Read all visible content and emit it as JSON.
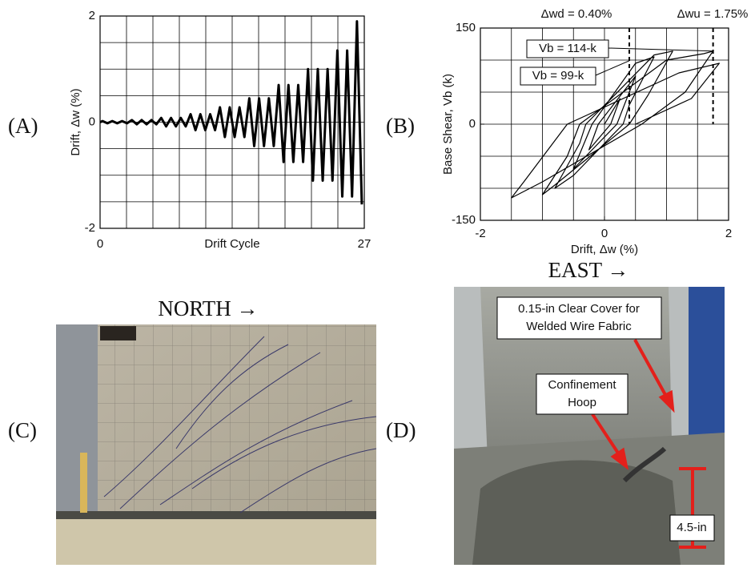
{
  "chart_data": [
    {
      "type": "line",
      "x_label": "Drift Cycle",
      "y_label": "Drift, Δw (%)",
      "xlim": [
        0,
        27
      ],
      "xticks": [
        0,
        27
      ],
      "ylim": [
        -2,
        2
      ],
      "yticks": [
        -2,
        0,
        2
      ],
      "grid": true,
      "color": "#000000",
      "x": [
        0,
        0.25,
        0.75,
        1.25,
        1.75,
        2.25,
        2.75,
        3.25,
        3.75,
        4.25,
        4.75,
        5.25,
        5.75,
        6.25,
        6.75,
        7.25,
        7.75,
        8.25,
        8.75,
        9.25,
        9.75,
        10.25,
        10.75,
        11.25,
        11.75,
        12.25,
        12.75,
        13.25,
        13.75,
        14.25,
        14.75,
        15.25,
        15.75,
        16.25,
        16.75,
        17.25,
        17.75,
        18.25,
        18.75,
        19.25,
        19.75,
        20.25,
        20.75,
        21.25,
        21.75,
        22.25,
        22.75,
        23.25,
        23.75,
        24.25,
        24.75,
        25.25,
        25.75,
        26.25,
        26.75
      ],
      "values": [
        0,
        0.02,
        -0.02,
        0.02,
        -0.02,
        0.02,
        -0.02,
        0.04,
        -0.04,
        0.04,
        -0.04,
        0.04,
        -0.04,
        0.08,
        -0.08,
        0.08,
        -0.08,
        0.08,
        -0.08,
        0.15,
        -0.15,
        0.15,
        -0.15,
        0.15,
        -0.15,
        0.28,
        -0.28,
        0.28,
        -0.28,
        0.28,
        -0.28,
        0.45,
        -0.45,
        0.45,
        -0.45,
        0.45,
        -0.45,
        0.7,
        -0.75,
        0.7,
        -0.75,
        0.7,
        -0.75,
        1.0,
        -1.1,
        1.0,
        -1.1,
        1.0,
        -1.1,
        1.35,
        -1.4,
        1.35,
        -1.4,
        1.9,
        -1.55
      ]
    },
    {
      "type": "line",
      "x_label": "Drift, Δw (%)",
      "y_label": "Base Shear, Vb (k)",
      "xlim": [
        -2,
        2
      ],
      "xticks": [
        -2,
        0,
        2
      ],
      "ylim": [
        -150,
        150
      ],
      "yticks": [
        -150,
        0,
        150
      ],
      "grid": true,
      "color": "#000000",
      "x": [
        0,
        0.25,
        0.1,
        -0.25,
        -0.1,
        0.5,
        0.2,
        -0.5,
        -0.2,
        0.5,
        0.8,
        0.4,
        0.3,
        -0.5,
        -0.8,
        -0.4,
        -0.3,
        0.8,
        1.1,
        0.7,
        0.4,
        -0.8,
        -1.0,
        -0.6,
        -0.4,
        1.0,
        1.6,
        1.75,
        1.3,
        0.6,
        -1.0,
        -1.5,
        -1.3,
        -0.6,
        1.2,
        1.85,
        1.4,
        0.5
      ],
      "values": [
        0,
        40,
        0,
        -40,
        0,
        75,
        0,
        -70,
        0,
        95,
        105,
        30,
        0,
        -80,
        -100,
        -30,
        0,
        108,
        114,
        45,
        0,
        -95,
        -110,
        -50,
        0,
        100,
        110,
        114,
        50,
        0,
        -90,
        -115,
        -90,
        0,
        80,
        95,
        40,
        0
      ],
      "vlines": [
        {
          "text": "Δwd = 0.40%",
          "x": 0.4
        },
        {
          "text": "Δwu = 1.75%",
          "x": 1.75
        }
      ],
      "callouts": [
        {
          "text": "Vb = 114-k",
          "x": 1.75,
          "y": 114
        },
        {
          "text": "Vb = 99-k",
          "x": 0.4,
          "y": 99
        }
      ]
    }
  ],
  "panel_labels": [
    "(A)",
    "(B)",
    "(C)",
    "(D)"
  ],
  "photo_c": {
    "heading": "NORTH →"
  },
  "photo_d": {
    "heading": "EAST →",
    "callouts": [
      {
        "lines": [
          "0.15-in Clear Cover for",
          "Welded Wire Fabric"
        ]
      },
      {
        "lines": [
          "Confinement",
          "Hoop"
        ]
      },
      {
        "lines": [
          "4.5-in"
        ]
      }
    ]
  }
}
